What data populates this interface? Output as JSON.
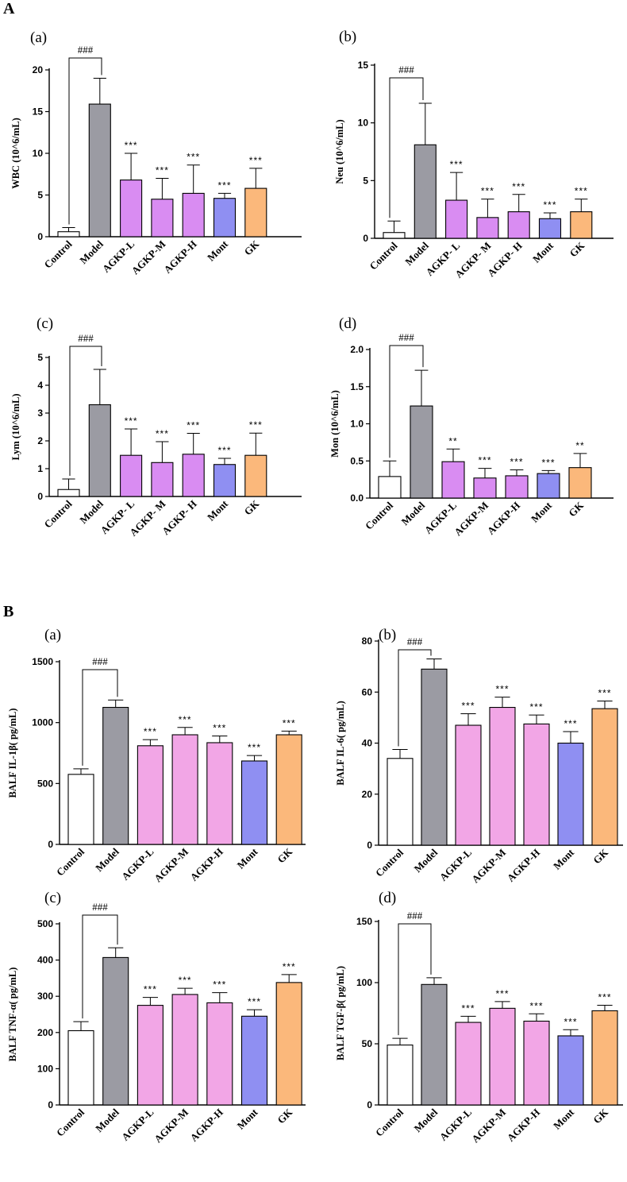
{
  "figure": {
    "section_A": "A",
    "section_B": "B"
  },
  "colors": {
    "Control": "#ffffff",
    "Model": "#9b9ba3",
    "AGKP-A": "#d98cf2",
    "AGKP-B": "#f2a6e6",
    "Mont": "#8f8ff2",
    "GK": "#fbb87b"
  },
  "chart_data": [
    {
      "panel": "(a)",
      "type": "bar",
      "ylabel": "WBC (10^6/mL)",
      "categories": [
        "Control",
        "Model",
        "AGKP-L",
        "AGKP-M",
        "AGKP-H",
        "Mont",
        "GK"
      ],
      "values": [
        0.6,
        15.9,
        6.8,
        4.5,
        5.2,
        4.6,
        5.8
      ],
      "errors": [
        0.5,
        3.1,
        3.2,
        2.5,
        3.4,
        0.6,
        2.4
      ],
      "significance": [
        "",
        "",
        "***",
        "***",
        "***",
        "***",
        "***"
      ],
      "bracket": "###",
      "ylim": [
        0,
        20
      ],
      "yticks": [
        0,
        5,
        10,
        15,
        20
      ],
      "ytick_labels": [
        "0",
        "5",
        "10",
        "15",
        "20"
      ],
      "palette": [
        "Control",
        "Model",
        "AGKP-A",
        "AGKP-A",
        "AGKP-A",
        "Mont",
        "GK"
      ]
    },
    {
      "panel": "(b)",
      "type": "bar",
      "ylabel": "Neu  (10^6/mL)",
      "categories": [
        "Control",
        "Model",
        "AGKP- L",
        "AGKP- M",
        "AGKP- H",
        "Mont",
        "GK"
      ],
      "values": [
        0.5,
        8.1,
        3.3,
        1.8,
        2.3,
        1.7,
        2.3
      ],
      "errors": [
        1.0,
        3.6,
        2.4,
        1.6,
        1.5,
        0.5,
        1.1
      ],
      "significance": [
        "",
        "",
        "***",
        "***",
        "***",
        "***",
        "***"
      ],
      "bracket": "###",
      "ylim": [
        0,
        15
      ],
      "yticks": [
        0,
        5,
        10,
        15
      ],
      "ytick_labels": [
        "0",
        "5",
        "10",
        "15"
      ],
      "palette": [
        "Control",
        "Model",
        "AGKP-A",
        "AGKP-A",
        "AGKP-A",
        "Mont",
        "GK"
      ]
    },
    {
      "panel": "(c)",
      "type": "bar",
      "ylabel": "Lym (10^6/mL)",
      "categories": [
        "Control",
        "Model",
        "AGKP- L",
        "AGKP- M",
        "AGKP- H",
        "Mont",
        "GK"
      ],
      "values": [
        0.25,
        3.3,
        1.48,
        1.22,
        1.52,
        1.15,
        1.48
      ],
      "errors": [
        0.38,
        1.27,
        0.95,
        0.75,
        0.75,
        0.22,
        0.8
      ],
      "significance": [
        "",
        "",
        "***",
        "***",
        "***",
        "***",
        "***"
      ],
      "bracket": "###",
      "ylim": [
        0,
        5
      ],
      "yticks": [
        0,
        1,
        2,
        3,
        4,
        5
      ],
      "ytick_labels": [
        "0",
        "1",
        "2",
        "3",
        "4",
        "5"
      ],
      "palette": [
        "Control",
        "Model",
        "AGKP-A",
        "AGKP-A",
        "AGKP-A",
        "Mont",
        "GK"
      ]
    },
    {
      "panel": "(d)",
      "type": "bar",
      "ylabel": "Mon  (10^6/mL)",
      "categories": [
        "Control",
        "Model",
        "AGKP-L",
        "AGKP-M",
        "AGKP-H",
        "Mont",
        "GK"
      ],
      "values": [
        0.29,
        1.24,
        0.49,
        0.27,
        0.3,
        0.33,
        0.41
      ],
      "errors": [
        0.21,
        0.48,
        0.17,
        0.13,
        0.08,
        0.04,
        0.19
      ],
      "significance": [
        "",
        "",
        "**",
        "***",
        "***",
        "***",
        "**"
      ],
      "bracket": "###",
      "ylim": [
        0,
        2
      ],
      "yticks": [
        0,
        0.5,
        1.0,
        1.5,
        2.0
      ],
      "ytick_labels": [
        "0.0",
        "0.5",
        "1.0",
        "1.5",
        "2.0"
      ],
      "palette": [
        "Control",
        "Model",
        "AGKP-A",
        "AGKP-A",
        "AGKP-A",
        "Mont",
        "GK"
      ]
    },
    {
      "panel": "(a)",
      "type": "bar",
      "ylabel": "BALF IL-1β( pg/mL)",
      "categories": [
        "Control",
        "Model",
        "AGKP-L",
        "AGKP-M",
        "AGKP-H",
        "Mont",
        "GK"
      ],
      "values": [
        575,
        1125,
        810,
        900,
        835,
        685,
        900
      ],
      "errors": [
        45,
        60,
        50,
        60,
        55,
        45,
        30
      ],
      "significance": [
        "",
        "",
        "***",
        "***",
        "***",
        "***",
        "***"
      ],
      "bracket": "###",
      "ylim": [
        0,
        1500
      ],
      "yticks": [
        0,
        500,
        1000,
        1500
      ],
      "ytick_labels": [
        "0",
        "500",
        "1000",
        "1500"
      ],
      "palette": [
        "Control",
        "Model",
        "AGKP-B",
        "AGKP-B",
        "AGKP-B",
        "Mont",
        "GK"
      ]
    },
    {
      "panel": "(b)",
      "type": "bar",
      "ylabel": "BALF IL-6( pg/mL)",
      "categories": [
        "Control",
        "Model",
        "AGKP-L",
        "AGKP-M",
        "AGKP-H",
        "Mont",
        "GK"
      ],
      "values": [
        34,
        69,
        47,
        54,
        47.5,
        40,
        53.5
      ],
      "errors": [
        3.5,
        4,
        4.5,
        4,
        3.5,
        4.5,
        3
      ],
      "significance": [
        "",
        "",
        "***",
        "***",
        "***",
        "***",
        "***"
      ],
      "bracket": "###",
      "ylim": [
        0,
        80
      ],
      "yticks": [
        0,
        20,
        40,
        60,
        80
      ],
      "ytick_labels": [
        "0",
        "20",
        "40",
        "60",
        "80"
      ],
      "palette": [
        "Control",
        "Model",
        "AGKP-B",
        "AGKP-B",
        "AGKP-B",
        "Mont",
        "GK"
      ]
    },
    {
      "panel": "(c)",
      "type": "bar",
      "ylabel": "BALF TNF-α( pg/mL)",
      "categories": [
        "Control",
        "Model",
        "AGKP-L",
        "AGKP-M",
        "AGKP-H",
        "Mont",
        "GK"
      ],
      "values": [
        205,
        407,
        275,
        305,
        282,
        245,
        338
      ],
      "errors": [
        25,
        27,
        22,
        17,
        28,
        18,
        22
      ],
      "significance": [
        "",
        "",
        "***",
        "***",
        "***",
        "***",
        "***"
      ],
      "bracket": "###",
      "ylim": [
        0,
        500
      ],
      "yticks": [
        0,
        100,
        200,
        300,
        400,
        500
      ],
      "ytick_labels": [
        "0",
        "100",
        "200",
        "300",
        "400",
        "500"
      ],
      "palette": [
        "Control",
        "Model",
        "AGKP-B",
        "AGKP-B",
        "AGKP-B",
        "Mont",
        "GK"
      ]
    },
    {
      "panel": "(d)",
      "type": "bar",
      "ylabel": "BALF TGF-β( pg/mL)",
      "categories": [
        "Control",
        "Model",
        "AGKP-L",
        "AGKP-M",
        "AGKP-H",
        "Mont",
        "GK"
      ],
      "values": [
        49,
        98.5,
        67.5,
        79,
        68.5,
        56.5,
        77
      ],
      "errors": [
        5.5,
        5.5,
        5,
        5.5,
        6,
        5,
        4.5
      ],
      "significance": [
        "",
        "",
        "***",
        "***",
        "***",
        "***",
        "***"
      ],
      "bracket": "###",
      "ylim": [
        0,
        150
      ],
      "yticks": [
        0,
        50,
        100,
        150
      ],
      "ytick_labels": [
        "0",
        "50",
        "100",
        "150"
      ],
      "palette": [
        "Control",
        "Model",
        "AGKP-B",
        "AGKP-B",
        "AGKP-B",
        "Mont",
        "GK"
      ]
    }
  ]
}
